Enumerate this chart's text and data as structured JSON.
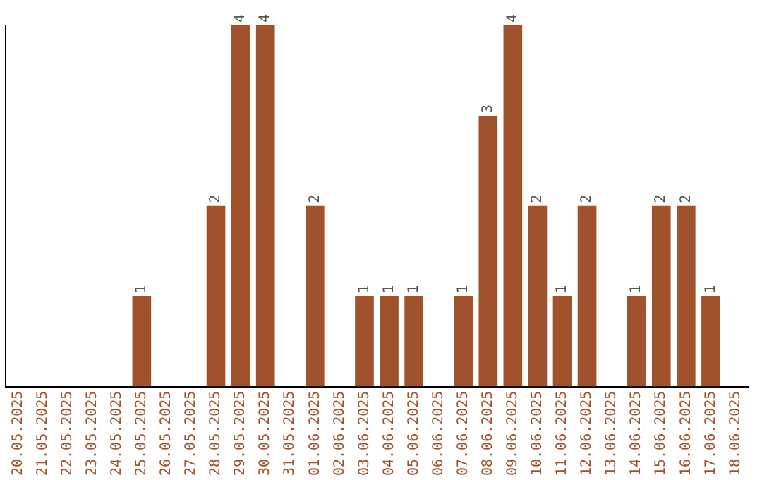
{
  "chart_data": {
    "type": "bar",
    "categories": [
      "20.05.2025",
      "21.05.2025",
      "22.05.2025",
      "23.05.2025",
      "24.05.2025",
      "25.05.2025",
      "26.05.2025",
      "27.05.2025",
      "28.05.2025",
      "29.05.2025",
      "30.05.2025",
      "31.05.2025",
      "01.06.2025",
      "02.06.2025",
      "03.06.2025",
      "04.06.2025",
      "05.06.2025",
      "06.06.2025",
      "07.06.2025",
      "08.06.2025",
      "09.06.2025",
      "10.06.2025",
      "11.06.2025",
      "12.06.2025",
      "13.06.2025",
      "14.06.2025",
      "15.06.2025",
      "16.06.2025",
      "17.06.2025",
      "18.06.2025"
    ],
    "values": [
      0,
      0,
      0,
      0,
      0,
      1,
      0,
      0,
      2,
      4,
      4,
      0,
      2,
      0,
      1,
      1,
      1,
      0,
      1,
      3,
      4,
      2,
      1,
      2,
      0,
      1,
      2,
      2,
      1,
      0
    ],
    "value_labels": [
      null,
      null,
      null,
      null,
      null,
      "1",
      null,
      null,
      "2",
      "4",
      "4",
      null,
      "2",
      null,
      "1",
      "1",
      "1",
      null,
      "1",
      "3",
      "4",
      "2",
      "1",
      "2",
      null,
      "1",
      "2",
      "2",
      "1",
      null
    ],
    "color": "#a0522d",
    "tick_labels": "x"
  }
}
